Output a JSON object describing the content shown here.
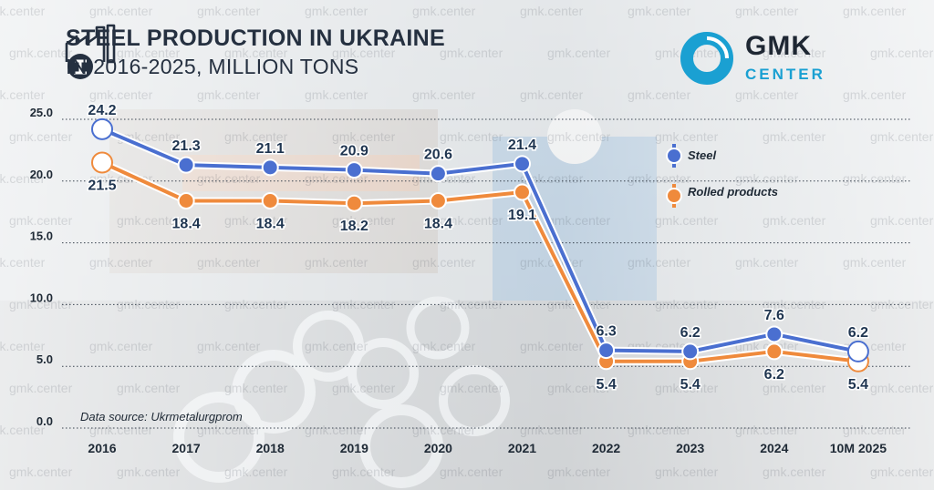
{
  "header": {
    "title": "STEEL PRODUCTION IN UKRAINE",
    "subtitle": "IN 2016-2025, MILLION TONS",
    "icon": "factory-icon"
  },
  "logo": {
    "brand": "GMK",
    "sub": "CENTER",
    "mark_color": "#1aa0d2"
  },
  "watermark_text": "gmk.center",
  "source": "Data source: Ukrmetalurgprom",
  "legend": {
    "steel": "Steel",
    "rolled": "Rolled products"
  },
  "colors": {
    "steel": "#4a6fd0",
    "rolled": "#ef8a3c",
    "text": "#1f2a36"
  },
  "chart_data": {
    "type": "line",
    "title": "STEEL PRODUCTION IN UKRAINE IN 2016-2025, MILLION TONS",
    "categories": [
      "2016",
      "2017",
      "2018",
      "2019",
      "2020",
      "2021",
      "2022",
      "2023",
      "2024",
      "10M 2025"
    ],
    "series": [
      {
        "name": "Steel",
        "values": [
          24.2,
          21.3,
          21.1,
          20.9,
          20.6,
          21.4,
          6.3,
          6.2,
          7.6,
          6.2
        ]
      },
      {
        "name": "Rolled products",
        "values": [
          21.5,
          18.4,
          18.4,
          18.2,
          18.4,
          19.1,
          5.4,
          5.4,
          6.2,
          5.4
        ]
      }
    ],
    "y_ticks": [
      "0.0",
      "5.0",
      "10.0",
      "15.0",
      "20.0",
      "25.0"
    ],
    "ylim": [
      0,
      25
    ],
    "grid": true,
    "legend_position": "right"
  }
}
